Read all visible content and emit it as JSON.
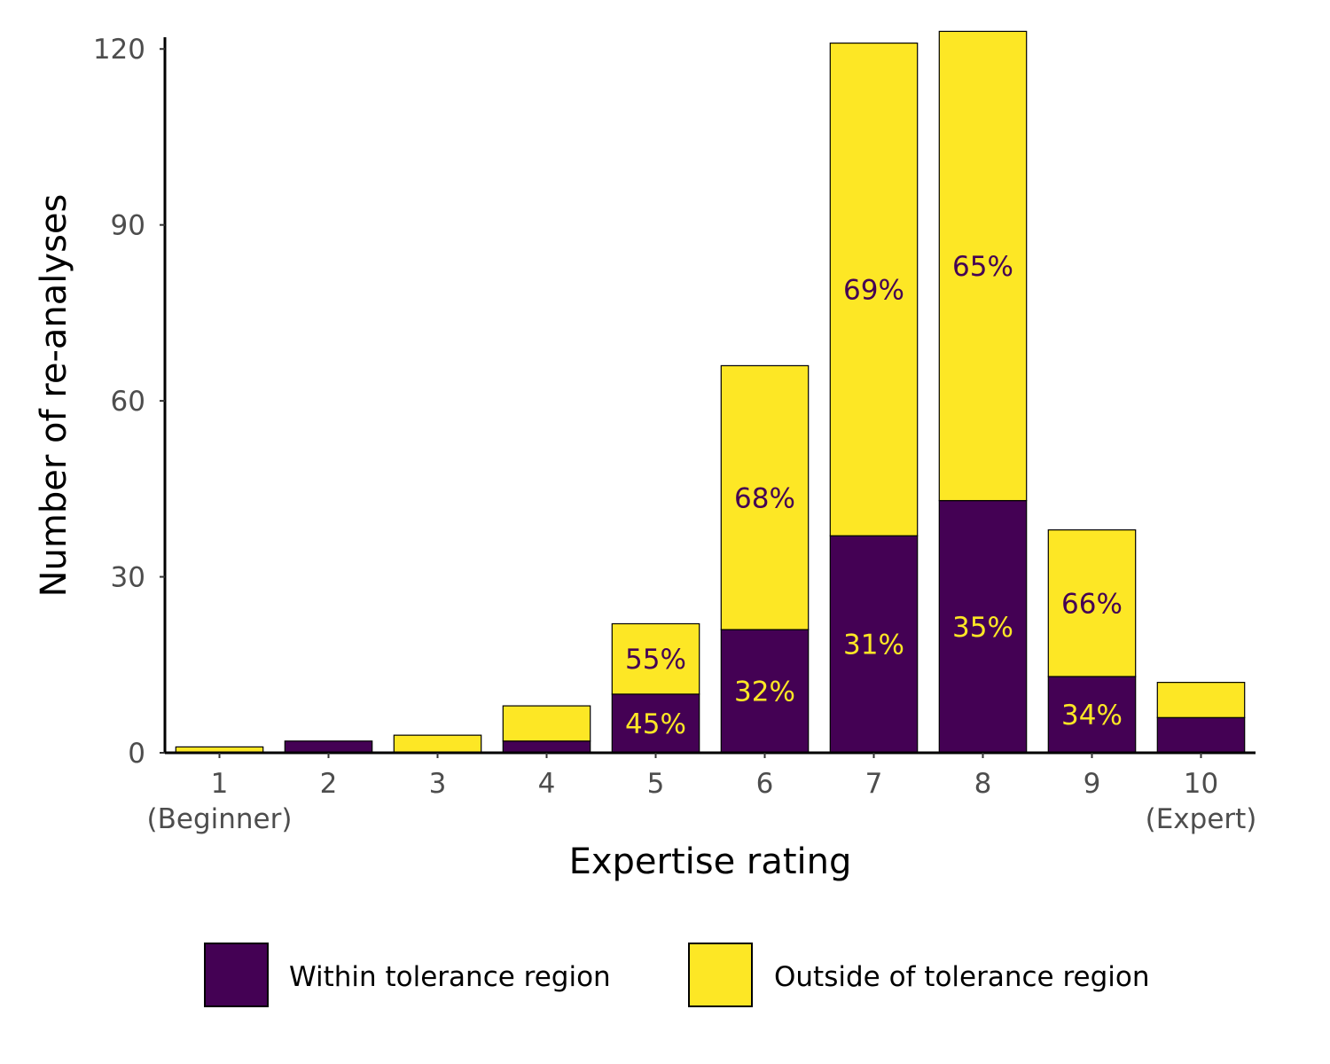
{
  "chart_data": {
    "type": "bar",
    "stacked": true,
    "title": "",
    "xlabel": "Expertise rating",
    "ylabel": "Number of re-analyses",
    "categories": [
      "1",
      "2",
      "3",
      "4",
      "5",
      "6",
      "7",
      "8",
      "9",
      "10"
    ],
    "category_sublabels": [
      "(Beginner)",
      "",
      "",
      "",
      "",
      "",
      "",
      "",
      "",
      "(Expert)"
    ],
    "ylim": [
      0,
      122
    ],
    "yticks": [
      0,
      30,
      60,
      90,
      120
    ],
    "grid": false,
    "legend_position": "bottom",
    "series": [
      {
        "name": "Within tolerance region",
        "color": "#440154",
        "label_color": "#FDE725",
        "values": [
          0,
          2,
          0,
          2,
          10,
          21,
          37,
          43,
          13,
          6
        ],
        "labels": [
          "",
          "",
          "",
          "",
          "45%",
          "32%",
          "31%",
          "35%",
          "34%",
          ""
        ]
      },
      {
        "name": "Outside of tolerance region",
        "color": "#FDE725",
        "label_color": "#440154",
        "values": [
          1,
          0,
          3,
          6,
          12,
          45,
          84,
          80,
          25,
          6
        ],
        "labels": [
          "",
          "",
          "",
          "",
          "55%",
          "68%",
          "69%",
          "65%",
          "66%",
          ""
        ]
      }
    ]
  }
}
